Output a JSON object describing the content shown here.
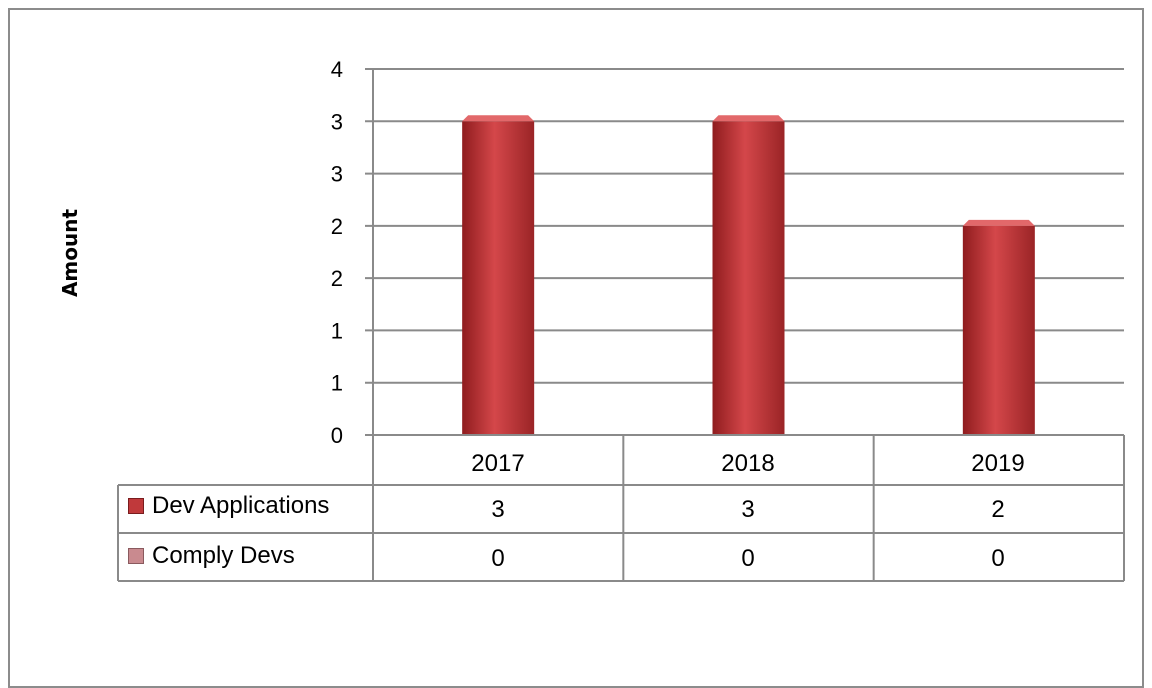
{
  "chart_data": {
    "type": "bar",
    "ylabel": "Amount",
    "xlabel": "",
    "categories": [
      "2017",
      "2018",
      "2019"
    ],
    "ylim": [
      0,
      3.5
    ],
    "ytick_values": [
      0,
      0.5,
      1,
      1.5,
      2,
      2.5,
      3,
      3.5
    ],
    "ytick_labels": [
      "0",
      "1",
      "1",
      "2",
      "2",
      "3",
      "3",
      "4"
    ],
    "grid": true,
    "legend": "data-table",
    "series": [
      {
        "name": "Dev Applications",
        "values": [
          3,
          3,
          2
        ],
        "color": "#c0393b"
      },
      {
        "name": "Comply Devs",
        "values": [
          0,
          0,
          0
        ],
        "color": "#c98a8f"
      }
    ],
    "table": {
      "rows": [
        {
          "label": "Dev Applications",
          "values": [
            "3",
            "3",
            "2"
          ]
        },
        {
          "label": "Comply Devs",
          "values": [
            "0",
            "0",
            "0"
          ]
        }
      ]
    }
  }
}
